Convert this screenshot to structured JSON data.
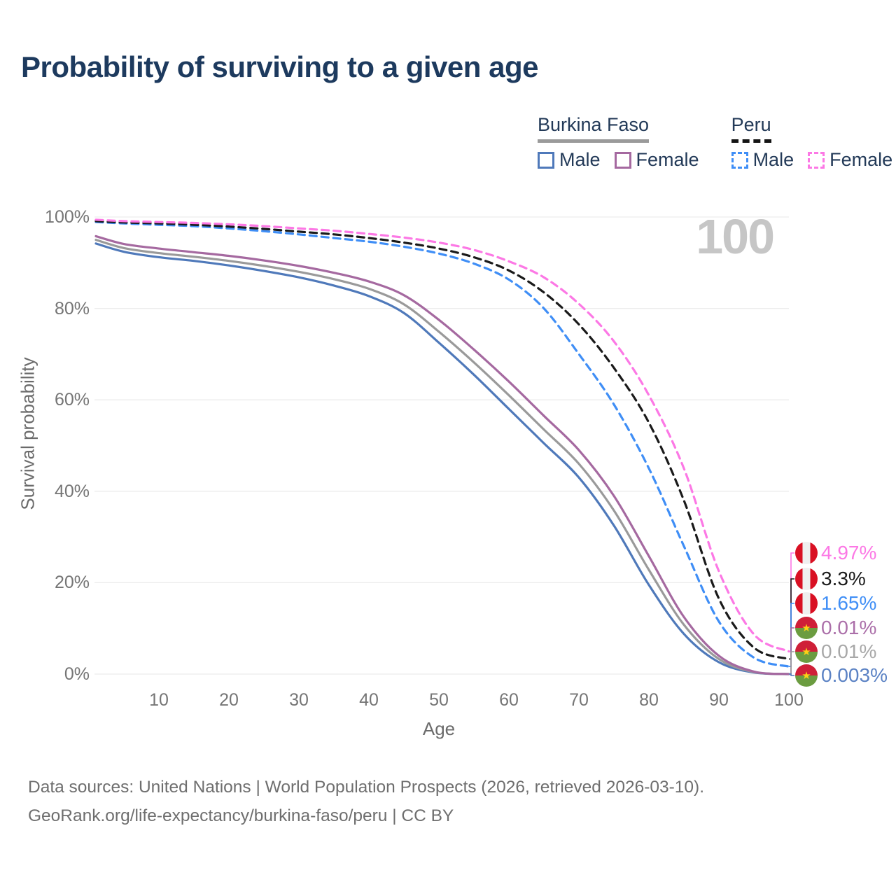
{
  "title": "Probability of surviving to a given age",
  "watermark_age": "100",
  "legend": {
    "groups": [
      {
        "label": "Burkina Faso",
        "line_style": "solid",
        "underline_color": "#9a9a9a",
        "items": [
          {
            "label": "Male",
            "color": "#4f79ba"
          },
          {
            "label": "Female",
            "color": "#a569a0"
          }
        ]
      },
      {
        "label": "Peru",
        "line_style": "dashed",
        "underline_color": "#141414",
        "items": [
          {
            "label": "Male",
            "color": "#3f8ef6"
          },
          {
            "label": "Female",
            "color": "#fc78e5"
          }
        ]
      }
    ]
  },
  "chart_data": {
    "type": "line",
    "title": "Probability of surviving to a given age",
    "xlabel": "Age",
    "ylabel": "Survival probability",
    "xlim": [
      1,
      100
    ],
    "ylim": [
      0,
      100
    ],
    "grid": "horizontal-only",
    "x_ticks": [
      10,
      20,
      30,
      40,
      50,
      60,
      70,
      80,
      90,
      100
    ],
    "y_ticks": [
      {
        "value": 0,
        "label": "0%"
      },
      {
        "value": 20,
        "label": "20%"
      },
      {
        "value": 40,
        "label": "40%"
      },
      {
        "value": 60,
        "label": "60%"
      },
      {
        "value": 80,
        "label": "80%"
      },
      {
        "value": 100,
        "label": "100%"
      }
    ],
    "x": [
      1,
      5,
      10,
      15,
      20,
      25,
      30,
      35,
      40,
      45,
      50,
      55,
      60,
      65,
      70,
      75,
      80,
      85,
      90,
      95,
      100
    ],
    "series": [
      {
        "id": "bf-male",
        "country": "Burkina Faso",
        "sex": "Male",
        "color": "#4f79ba",
        "dashed": false,
        "values": [
          94.2,
          92.4,
          91.2,
          90.4,
          89.4,
          88.2,
          86.8,
          85.0,
          82.7,
          79.0,
          72.5,
          65.5,
          58.0,
          50.5,
          43.0,
          32.5,
          19.5,
          8.8,
          2.6,
          0.35,
          0.003
        ]
      },
      {
        "id": "bf-all",
        "country": "Burkina Faso",
        "sex": "Both",
        "color": "#9a9a9a",
        "dashed": false,
        "values": [
          95.0,
          93.2,
          92.1,
          91.3,
          90.4,
          89.3,
          88.0,
          86.4,
          84.3,
          80.9,
          74.9,
          68.2,
          61.0,
          53.5,
          46.0,
          35.8,
          22.8,
          10.8,
          3.3,
          0.45,
          0.01
        ]
      },
      {
        "id": "bf-female",
        "country": "Burkina Faso",
        "sex": "Female",
        "color": "#a569a0",
        "dashed": false,
        "values": [
          95.8,
          94.1,
          93.1,
          92.3,
          91.5,
          90.5,
          89.3,
          87.8,
          85.9,
          82.9,
          77.5,
          71.0,
          64.0,
          56.5,
          49.0,
          39.0,
          25.8,
          12.5,
          4.0,
          0.55,
          0.01
        ]
      },
      {
        "id": "peru-male",
        "country": "Peru",
        "sex": "Male",
        "color": "#3f8ef6",
        "dashed": true,
        "values": [
          98.9,
          98.6,
          98.3,
          98.0,
          97.5,
          96.9,
          96.2,
          95.4,
          94.6,
          93.5,
          92.0,
          89.8,
          86.3,
          80.0,
          70.0,
          59.0,
          45.0,
          28.0,
          11.5,
          3.6,
          1.65
        ]
      },
      {
        "id": "peru-all",
        "country": "Peru",
        "sex": "Both",
        "color": "#1a1a1a",
        "dashed": true,
        "values": [
          99.1,
          98.8,
          98.6,
          98.3,
          97.9,
          97.4,
          96.8,
          96.2,
          95.4,
          94.4,
          93.1,
          91.2,
          88.3,
          83.5,
          76.5,
          67.0,
          55.0,
          38.0,
          16.5,
          5.8,
          3.3
        ]
      },
      {
        "id": "peru-female",
        "country": "Peru",
        "sex": "Female",
        "color": "#fc78e5",
        "dashed": true,
        "values": [
          99.4,
          99.1,
          98.9,
          98.7,
          98.4,
          98.0,
          97.5,
          97.0,
          96.3,
          95.5,
          94.4,
          92.8,
          90.3,
          86.8,
          81.0,
          72.8,
          61.0,
          45.0,
          22.5,
          8.7,
          4.97
        ]
      }
    ],
    "end_labels": [
      {
        "series": "peru-female",
        "text": "4.97%",
        "color": "#fc78e5",
        "flag": "peru"
      },
      {
        "series": "peru-all",
        "text": "3.3%",
        "color": "#1a1a1a",
        "flag": "peru"
      },
      {
        "series": "peru-male",
        "text": "1.65%",
        "color": "#3f8ef6",
        "flag": "peru"
      },
      {
        "series": "bf-female",
        "text": "0.01%",
        "color": "#ab6fa9",
        "flag": "burkina-faso"
      },
      {
        "series": "bf-all",
        "text": "0.01%",
        "color": "#a8a8a8",
        "flag": "burkina-faso"
      },
      {
        "series": "bf-male",
        "text": "0.003%",
        "color": "#5b82c4",
        "flag": "burkina-faso"
      }
    ]
  },
  "flags": {
    "peru": {
      "red": "#d91023",
      "white": "#efefef"
    },
    "burkina_faso": {
      "red": "#cf1f38",
      "green": "#6b9c40",
      "star": "#fcd116"
    }
  },
  "grid_color": "#ececec",
  "footer": {
    "line1": "Data sources: United Nations | World Population Prospects (2026, retrieved 2026-03-10).",
    "line2": "GeoRank.org/life-expectancy/burkina-faso/peru | CC BY"
  }
}
